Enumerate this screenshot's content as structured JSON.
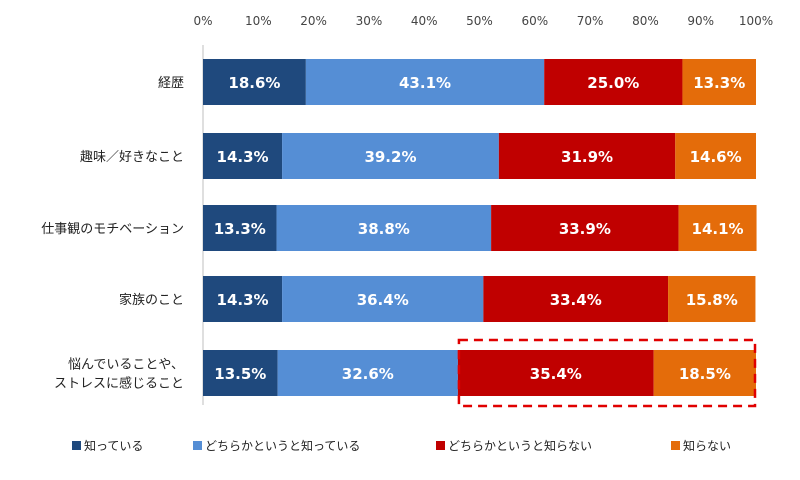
{
  "chart_data": {
    "type": "bar",
    "orientation": "horizontal",
    "stacked": true,
    "xlim": [
      0,
      100
    ],
    "x_ticks": [
      "0%",
      "10%",
      "20%",
      "30%",
      "40%",
      "50%",
      "60%",
      "70%",
      "80%",
      "90%",
      "100%"
    ],
    "categories": [
      [
        "経歴"
      ],
      [
        "趣味／好きなこと"
      ],
      [
        "仕事観のモチベーション"
      ],
      [
        "家族のこと"
      ],
      [
        "悩んでいることや、",
        "ストレスに感じること"
      ]
    ],
    "series": [
      {
        "name": "知っている",
        "color": "#1f497d",
        "values": [
          18.6,
          14.3,
          13.3,
          14.3,
          13.5
        ],
        "labels": [
          "18.6%",
          "14.3%",
          "13.3%",
          "14.3%",
          "13.5%"
        ]
      },
      {
        "name": "どちらかというと知っている",
        "color": "#558ed5",
        "values": [
          43.1,
          39.2,
          38.8,
          36.4,
          32.6
        ],
        "labels": [
          "43.1%",
          "39.2%",
          "38.8%",
          "36.4%",
          "32.6%"
        ]
      },
      {
        "name": "どちらかというと知らない",
        "color": "#c00000",
        "values": [
          25.0,
          31.9,
          33.9,
          33.4,
          35.4
        ],
        "labels": [
          "25.0%",
          "31.9%",
          "33.9%",
          "33.4%",
          "35.4%"
        ]
      },
      {
        "name": "知らない",
        "color": "#e46c0a",
        "values": [
          13.3,
          14.6,
          14.1,
          15.8,
          18.5
        ],
        "labels": [
          "13.3%",
          "14.6%",
          "14.1%",
          "15.8%",
          "18.5%"
        ]
      }
    ],
    "highlight": {
      "category_index": 4,
      "series_indices": [
        2,
        3
      ],
      "color": "#e00000",
      "style": "dashed"
    },
    "legend_position": "bottom"
  }
}
